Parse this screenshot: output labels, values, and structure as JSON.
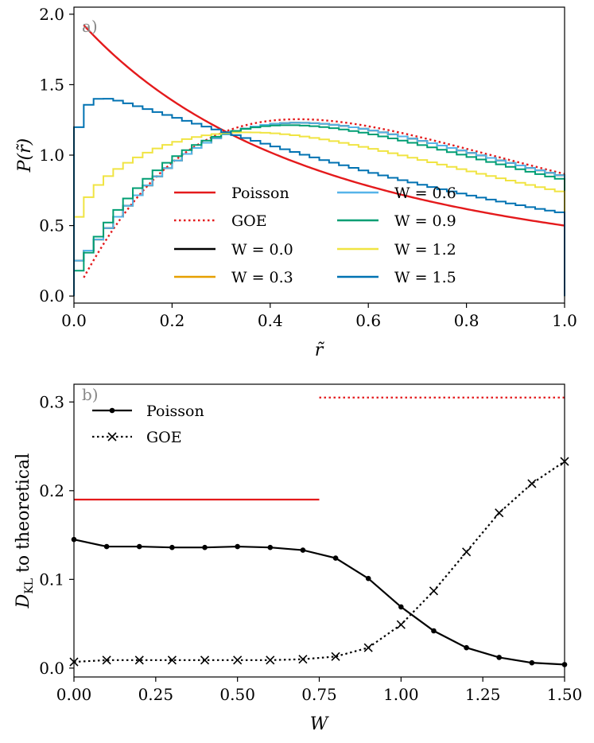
{
  "chart_data": [
    {
      "type": "line",
      "panel_label": "a)",
      "xlabel": "r̃",
      "ylabel": "P(r̃)",
      "xlim": [
        0.0,
        1.0
      ],
      "ylim": [
        -0.05,
        2.05
      ],
      "xticks": [
        0.0,
        0.2,
        0.4,
        0.6,
        0.8,
        1.0
      ],
      "xtick_labels": [
        "0.0",
        "0.2",
        "0.4",
        "0.6",
        "0.8",
        "1.0"
      ],
      "yticks": [
        0.0,
        0.5,
        1.0,
        1.5,
        2.0
      ],
      "ytick_labels": [
        "0.0",
        "0.5",
        "1.0",
        "1.5",
        "2.0"
      ],
      "theory": [
        {
          "name": "Poisson",
          "formula": "2/(1+r)^2",
          "color": "#e41a1c",
          "dash": "solid"
        },
        {
          "name": "GOE",
          "formula": "(27/4)(r+r^2)/(1+r+r^2)^2.5",
          "color": "#e41a1c",
          "dash": "dotted"
        }
      ],
      "histogram": {
        "bins": 50,
        "series": [
          {
            "name": "W = 0.0",
            "W": 0.0,
            "color": "#000000"
          },
          {
            "name": "W = 0.3",
            "W": 0.3,
            "color": "#e69f00"
          },
          {
            "name": "W = 0.6",
            "W": 0.6,
            "color": "#56b4e9"
          },
          {
            "name": "W = 0.9",
            "W": 0.9,
            "color": "#009e73"
          },
          {
            "name": "W = 1.2",
            "W": 1.2,
            "color": "#f0e442"
          },
          {
            "name": "W = 1.5",
            "W": 1.5,
            "color": "#0072b2"
          }
        ]
      },
      "legend_location": "lower-center, two columns"
    },
    {
      "type": "line",
      "panel_label": "b)",
      "xlabel": "W",
      "ylabel_main": "D",
      "ylabel_sub": "KL",
      "ylabel_rest": " to theoretical",
      "xlim": [
        0.0,
        1.5
      ],
      "ylim": [
        -0.01,
        0.32
      ],
      "xticks": [
        0.0,
        0.25,
        0.5,
        0.75,
        1.0,
        1.25,
        1.5
      ],
      "xtick_labels": [
        "0.00",
        "0.25",
        "0.50",
        "0.75",
        "1.00",
        "1.25",
        "1.50"
      ],
      "yticks": [
        0.0,
        0.1,
        0.2,
        0.3
      ],
      "ytick_labels": [
        "0.0",
        "0.1",
        "0.2",
        "0.3"
      ],
      "x": [
        0.0,
        0.1,
        0.2,
        0.3,
        0.4,
        0.5,
        0.6,
        0.7,
        0.8,
        0.9,
        1.0,
        1.1,
        1.2,
        1.3,
        1.4,
        1.5
      ],
      "series": [
        {
          "name": "Poisson",
          "marker": "dot",
          "dash": "solid",
          "color": "#000000",
          "values": [
            0.145,
            0.137,
            0.137,
            0.136,
            0.136,
            0.137,
            0.136,
            0.133,
            0.124,
            0.101,
            0.069,
            0.042,
            0.023,
            0.012,
            0.006,
            0.004
          ]
        },
        {
          "name": "GOE",
          "marker": "x",
          "dash": "dotted",
          "color": "#000000",
          "values": [
            0.007,
            0.009,
            0.009,
            0.009,
            0.009,
            0.009,
            0.009,
            0.01,
            0.013,
            0.023,
            0.049,
            0.087,
            0.131,
            0.175,
            0.208,
            0.233
          ]
        }
      ],
      "reference_lines": [
        {
          "color": "#e41a1c",
          "dash": "solid",
          "y": 0.19,
          "x_range": [
            0.0,
            0.75
          ]
        },
        {
          "color": "#e41a1c",
          "dash": "dotted",
          "y": 0.305,
          "x_range": [
            0.75,
            1.5
          ]
        }
      ],
      "legend_location": "upper-left"
    }
  ]
}
